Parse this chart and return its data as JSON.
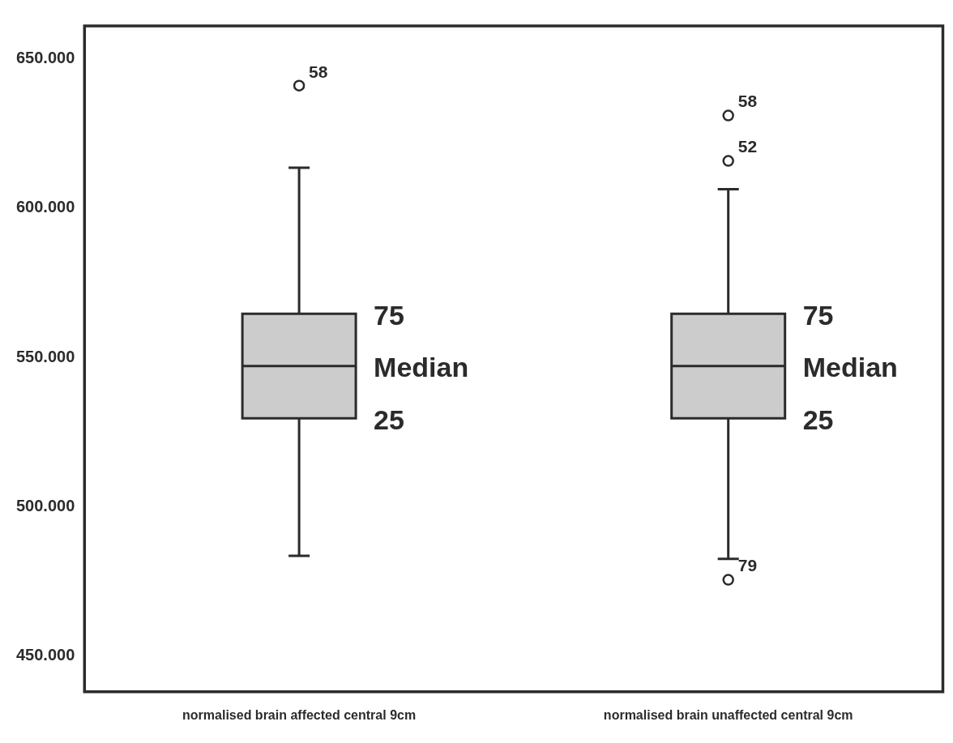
{
  "chart_data": {
    "type": "box",
    "categories": [
      "normalised brain affected central 9cm",
      "normalised brain unaffected central 9cm"
    ],
    "boxes": [
      {
        "low": 483.5,
        "q1": 529.6,
        "median": 547.1,
        "q3": 564.6,
        "high": 613.5,
        "outliers": [
          641
        ]
      },
      {
        "low": 482.5,
        "q1": 529.6,
        "median": 547.1,
        "q3": 564.6,
        "high": 606.3,
        "outliers": [
          631,
          615.8,
          475.5
        ]
      }
    ],
    "color": "#cccccc",
    "ylim": [
      438,
      661
    ],
    "yticks": [
      {
        "value": 450,
        "label": "450.000"
      },
      {
        "value": 500,
        "label": "500.000"
      },
      {
        "value": 550,
        "label": "550.000"
      },
      {
        "value": 600,
        "label": "600.000"
      },
      {
        "value": 650,
        "label": "650.000"
      }
    ],
    "grid": false,
    "legend": false,
    "marker": "circle",
    "annotations": [
      "58",
      "58",
      "52",
      "79",
      {
        "text": "75",
        "x": "normalised brain affected central 9cm",
        "y": 564.6
      },
      {
        "text": "Median",
        "x": "normalised brain affected central 9cm",
        "y": 547.1
      },
      {
        "text": "25",
        "x": "normalised brain affected central 9cm",
        "y": 529.6
      },
      {
        "text": "75",
        "x": "normalised brain unaffected central 9cm",
        "y": 564.6
      },
      {
        "text": "Median",
        "x": "normalised brain unaffected central 9cm",
        "y": 547.1
      },
      {
        "text": "25",
        "x": "normalised brain unaffected central 9cm",
        "y": 529.6
      }
    ]
  }
}
